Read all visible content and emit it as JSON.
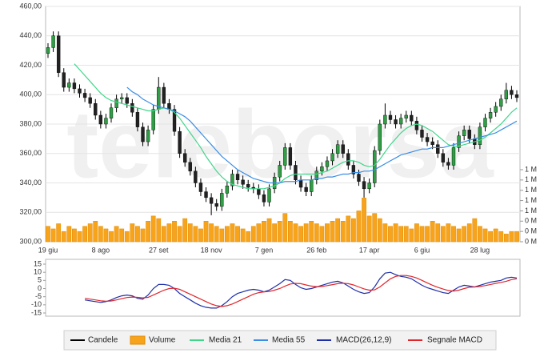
{
  "watermark": "teleborsa",
  "chart_data": [
    {
      "type": "candlestick",
      "categories": [
        "19 giu",
        null,
        null,
        null,
        null,
        null,
        null,
        null,
        null,
        null,
        "8 ago",
        null,
        null,
        null,
        null,
        null,
        null,
        null,
        null,
        null,
        null,
        "27 set",
        null,
        null,
        null,
        null,
        null,
        null,
        null,
        null,
        null,
        "18 nov",
        null,
        null,
        null,
        null,
        null,
        null,
        null,
        null,
        null,
        "7 gen",
        null,
        null,
        null,
        null,
        null,
        null,
        null,
        null,
        null,
        "26 feb",
        null,
        null,
        null,
        null,
        null,
        null,
        null,
        null,
        null,
        "17 apr",
        null,
        null,
        null,
        null,
        null,
        null,
        null,
        null,
        null,
        "6 giu",
        null,
        null,
        null,
        null,
        null,
        null,
        null,
        null,
        null,
        null,
        "28 lug",
        null,
        null,
        null,
        null,
        null,
        null,
        null
      ],
      "ylim": [
        300,
        460
      ],
      "yticks": [
        {
          "value": 300,
          "label": "300,00"
        },
        {
          "value": 320,
          "label": "320,00"
        },
        {
          "value": 340,
          "label": "340,00"
        },
        {
          "value": 360,
          "label": "360,00"
        },
        {
          "value": 380,
          "label": "380,00"
        },
        {
          "value": 400,
          "label": "400,00"
        },
        {
          "value": 420,
          "label": "420,00"
        },
        {
          "value": 440,
          "label": "440,00"
        },
        {
          "value": 460,
          "label": "460,00"
        }
      ],
      "y2lim": [
        0,
        1.4
      ],
      "y2ticks": [
        {
          "value": 0,
          "label": "0 M"
        },
        {
          "value": 0.2,
          "label": "0 M"
        },
        {
          "value": 0.4,
          "label": "0 M"
        },
        {
          "value": 0.6,
          "label": "1 M"
        },
        {
          "value": 0.8,
          "label": "1 M"
        },
        {
          "value": 1.0,
          "label": "1 M"
        },
        {
          "value": 1.2,
          "label": "1 M"
        },
        {
          "value": 1.4,
          "label": "1 M"
        }
      ],
      "grid": true,
      "series": [
        {
          "name": "Candele",
          "color": "#000000",
          "up_color": "#2f9e44",
          "down_color": "#222222",
          "open": [
            428,
            432,
            440,
            415,
            405,
            408,
            404,
            401,
            398,
            394,
            386,
            380,
            384,
            391,
            397,
            398,
            394,
            388,
            378,
            368,
            376,
            390,
            405,
            394,
            390,
            375,
            360,
            354,
            348,
            340,
            334,
            330,
            326,
            324,
            333,
            338,
            346,
            342,
            339,
            337,
            336,
            332,
            327,
            336,
            344,
            352,
            364,
            352,
            342,
            337,
            334,
            342,
            348,
            351,
            355,
            360,
            366,
            360,
            352,
            346,
            341,
            336,
            340,
            362,
            380,
            386,
            383,
            380,
            384,
            386,
            382,
            376,
            371,
            368,
            366,
            360,
            354,
            352,
            364,
            372,
            376,
            370,
            366,
            378,
            384,
            388,
            392,
            397,
            403,
            400
          ],
          "high": [
            435,
            443,
            443,
            418,
            411,
            411,
            407,
            404,
            401,
            397,
            389,
            387,
            394,
            400,
            401,
            401,
            397,
            391,
            381,
            379,
            393,
            412,
            408,
            397,
            393,
            378,
            363,
            357,
            351,
            343,
            337,
            333,
            329,
            336,
            341,
            349,
            349,
            345,
            342,
            340,
            339,
            335,
            339,
            347,
            355,
            367,
            367,
            355,
            345,
            340,
            345,
            351,
            354,
            358,
            363,
            369,
            369,
            363,
            355,
            349,
            344,
            343,
            365,
            383,
            394,
            389,
            386,
            387,
            389,
            389,
            385,
            379,
            374,
            371,
            369,
            363,
            357,
            367,
            375,
            379,
            379,
            373,
            381,
            387,
            391,
            395,
            400,
            408,
            406,
            403
          ],
          "low": [
            425,
            429,
            412,
            402,
            402,
            401,
            398,
            395,
            391,
            383,
            377,
            377,
            381,
            388,
            394,
            391,
            385,
            375,
            365,
            365,
            373,
            387,
            391,
            387,
            372,
            357,
            351,
            345,
            337,
            331,
            327,
            318,
            321,
            321,
            330,
            335,
            339,
            336,
            334,
            333,
            329,
            324,
            324,
            333,
            341,
            349,
            349,
            339,
            334,
            331,
            331,
            339,
            345,
            348,
            352,
            357,
            357,
            349,
            343,
            338,
            330,
            333,
            337,
            359,
            377,
            380,
            377,
            377,
            381,
            379,
            373,
            368,
            365,
            363,
            357,
            351,
            349,
            349,
            361,
            369,
            367,
            363,
            363,
            375,
            381,
            385,
            389,
            394,
            397,
            395
          ],
          "close": [
            432,
            440,
            415,
            405,
            408,
            404,
            401,
            398,
            394,
            386,
            380,
            384,
            391,
            397,
            398,
            394,
            388,
            378,
            368,
            376,
            390,
            405,
            394,
            390,
            375,
            360,
            354,
            348,
            340,
            334,
            330,
            326,
            324,
            333,
            338,
            346,
            342,
            339,
            337,
            336,
            332,
            327,
            336,
            344,
            352,
            364,
            352,
            342,
            337,
            334,
            342,
            348,
            351,
            355,
            360,
            366,
            360,
            352,
            346,
            341,
            336,
            340,
            362,
            380,
            386,
            383,
            380,
            384,
            386,
            382,
            376,
            371,
            368,
            366,
            360,
            354,
            352,
            364,
            372,
            376,
            370,
            366,
            378,
            384,
            388,
            392,
            397,
            403,
            400,
            398
          ]
        },
        {
          "name": "Volume",
          "type": "bar",
          "axis": "y2",
          "color": "#f7a41c",
          "values": [
            0.3,
            0.25,
            0.35,
            0.2,
            0.3,
            0.25,
            0.2,
            0.3,
            0.35,
            0.4,
            0.3,
            0.25,
            0.2,
            0.3,
            0.25,
            0.2,
            0.35,
            0.3,
            0.25,
            0.4,
            0.5,
            0.45,
            0.3,
            0.35,
            0.4,
            0.3,
            0.45,
            0.35,
            0.3,
            0.25,
            0.4,
            0.35,
            0.3,
            0.25,
            0.3,
            0.35,
            0.3,
            0.25,
            0.2,
            0.3,
            0.35,
            0.4,
            0.45,
            0.35,
            0.4,
            0.55,
            0.4,
            0.35,
            0.3,
            0.35,
            0.4,
            0.35,
            0.3,
            0.35,
            0.4,
            0.45,
            0.4,
            0.5,
            0.45,
            0.6,
            0.85,
            0.5,
            0.55,
            0.45,
            0.35,
            0.3,
            0.35,
            0.3,
            0.3,
            0.25,
            0.35,
            0.3,
            0.3,
            0.4,
            0.35,
            0.3,
            0.35,
            0.3,
            0.25,
            0.3,
            0.35,
            0.45,
            0.3,
            0.25,
            0.2,
            0.25,
            0.2,
            0.15,
            0.2,
            0.2
          ]
        },
        {
          "name": "Media 21",
          "type": "line",
          "color": "#3fd68a",
          "values": [
            null,
            null,
            null,
            null,
            null,
            421,
            417,
            413,
            409,
            405,
            401,
            398,
            396,
            395,
            394,
            393,
            392,
            391,
            390,
            389,
            389,
            390,
            391,
            390,
            388,
            384,
            379,
            374,
            369,
            364,
            358,
            353,
            348,
            344,
            341,
            339,
            338,
            337,
            336,
            336,
            336,
            336,
            337,
            338,
            340,
            343,
            345,
            346,
            346,
            346,
            346,
            346,
            347,
            348,
            350,
            352,
            354,
            355,
            355,
            354,
            352,
            351,
            352,
            356,
            361,
            366,
            370,
            374,
            377,
            379,
            380,
            379,
            377,
            375,
            372,
            369,
            366,
            365,
            365,
            366,
            367,
            368,
            369,
            371,
            374,
            377,
            380,
            384,
            388,
            391
          ]
        },
        {
          "name": "Media 55",
          "type": "line",
          "color": "#3a8ee6",
          "values": [
            null,
            null,
            null,
            null,
            null,
            null,
            null,
            null,
            null,
            null,
            null,
            null,
            null,
            null,
            null,
            405,
            402,
            400,
            397,
            395,
            393,
            392,
            391,
            390,
            389,
            387,
            385,
            382,
            378,
            374,
            370,
            366,
            362,
            358,
            355,
            352,
            349,
            347,
            345,
            343,
            342,
            341,
            340,
            340,
            340,
            341,
            341,
            341,
            342,
            342,
            342,
            343,
            343,
            344,
            344,
            345,
            346,
            346,
            347,
            347,
            348,
            348,
            349,
            351,
            353,
            355,
            357,
            359,
            360,
            361,
            362,
            363,
            363,
            364,
            364,
            364,
            365,
            366,
            367,
            368,
            369,
            370,
            371,
            372,
            373,
            374,
            376,
            378,
            380,
            382
          ]
        }
      ]
    },
    {
      "type": "line",
      "ylim": [
        -15,
        15
      ],
      "yticks": [
        15,
        10,
        5,
        0,
        -5,
        -10,
        -15
      ],
      "series": [
        {
          "name": "MACD(26,12,9)",
          "color": "#1f2fa8",
          "values": [
            null,
            null,
            null,
            null,
            null,
            null,
            null,
            -7,
            -7.5,
            -8,
            -8.5,
            -8,
            -7,
            -5.5,
            -4.5,
            -4,
            -4.5,
            -6,
            -6.5,
            -4,
            0,
            2.5,
            2.5,
            2,
            0,
            -3,
            -5,
            -7,
            -9,
            -10.5,
            -11.5,
            -12,
            -12,
            -10.5,
            -8,
            -5,
            -3,
            -2,
            -1,
            -0.5,
            -1,
            -2,
            -1,
            1,
            3,
            5.5,
            5,
            2.5,
            0.5,
            -0.5,
            0,
            1,
            2,
            3,
            4,
            4.5,
            3.5,
            1.5,
            -0.5,
            -2,
            -3,
            -2.5,
            1,
            6,
            9.5,
            10,
            8.5,
            7.5,
            7,
            6,
            4,
            2,
            0.5,
            -0.5,
            -1.5,
            -2.5,
            -3,
            -1,
            1,
            2,
            1.5,
            1,
            2,
            3,
            4,
            4.5,
            5,
            6.5,
            7,
            6.5
          ]
        },
        {
          "name": "Segnale MACD",
          "color": "#e0262b",
          "values": [
            null,
            null,
            null,
            null,
            null,
            null,
            null,
            -6,
            -6.5,
            -7,
            -7.5,
            -7.8,
            -7.6,
            -7,
            -6.2,
            -5.5,
            -5.2,
            -5.4,
            -5.7,
            -5.4,
            -4,
            -2.5,
            -1,
            0,
            0.2,
            -0.5,
            -2,
            -3.5,
            -5,
            -6.5,
            -8,
            -9.5,
            -10.5,
            -11,
            -10.5,
            -9.5,
            -8,
            -6.5,
            -5,
            -3.5,
            -2.5,
            -2,
            -1.8,
            -1,
            0,
            1.5,
            2.8,
            3.2,
            3,
            2.2,
            1.5,
            1.2,
            1.3,
            1.8,
            2.4,
            3,
            3.3,
            3,
            2.2,
            1,
            -0.2,
            -1,
            -0.8,
            1,
            3.5,
            6,
            7.5,
            8,
            8,
            7.5,
            6.5,
            5,
            3.5,
            2,
            0.8,
            -0.3,
            -1.2,
            -1.5,
            -1,
            0,
            0.8,
            1,
            1.3,
            1.8,
            2.5,
            3.2,
            3.8,
            4.5,
            5.5,
            6
          ]
        }
      ]
    }
  ]
}
